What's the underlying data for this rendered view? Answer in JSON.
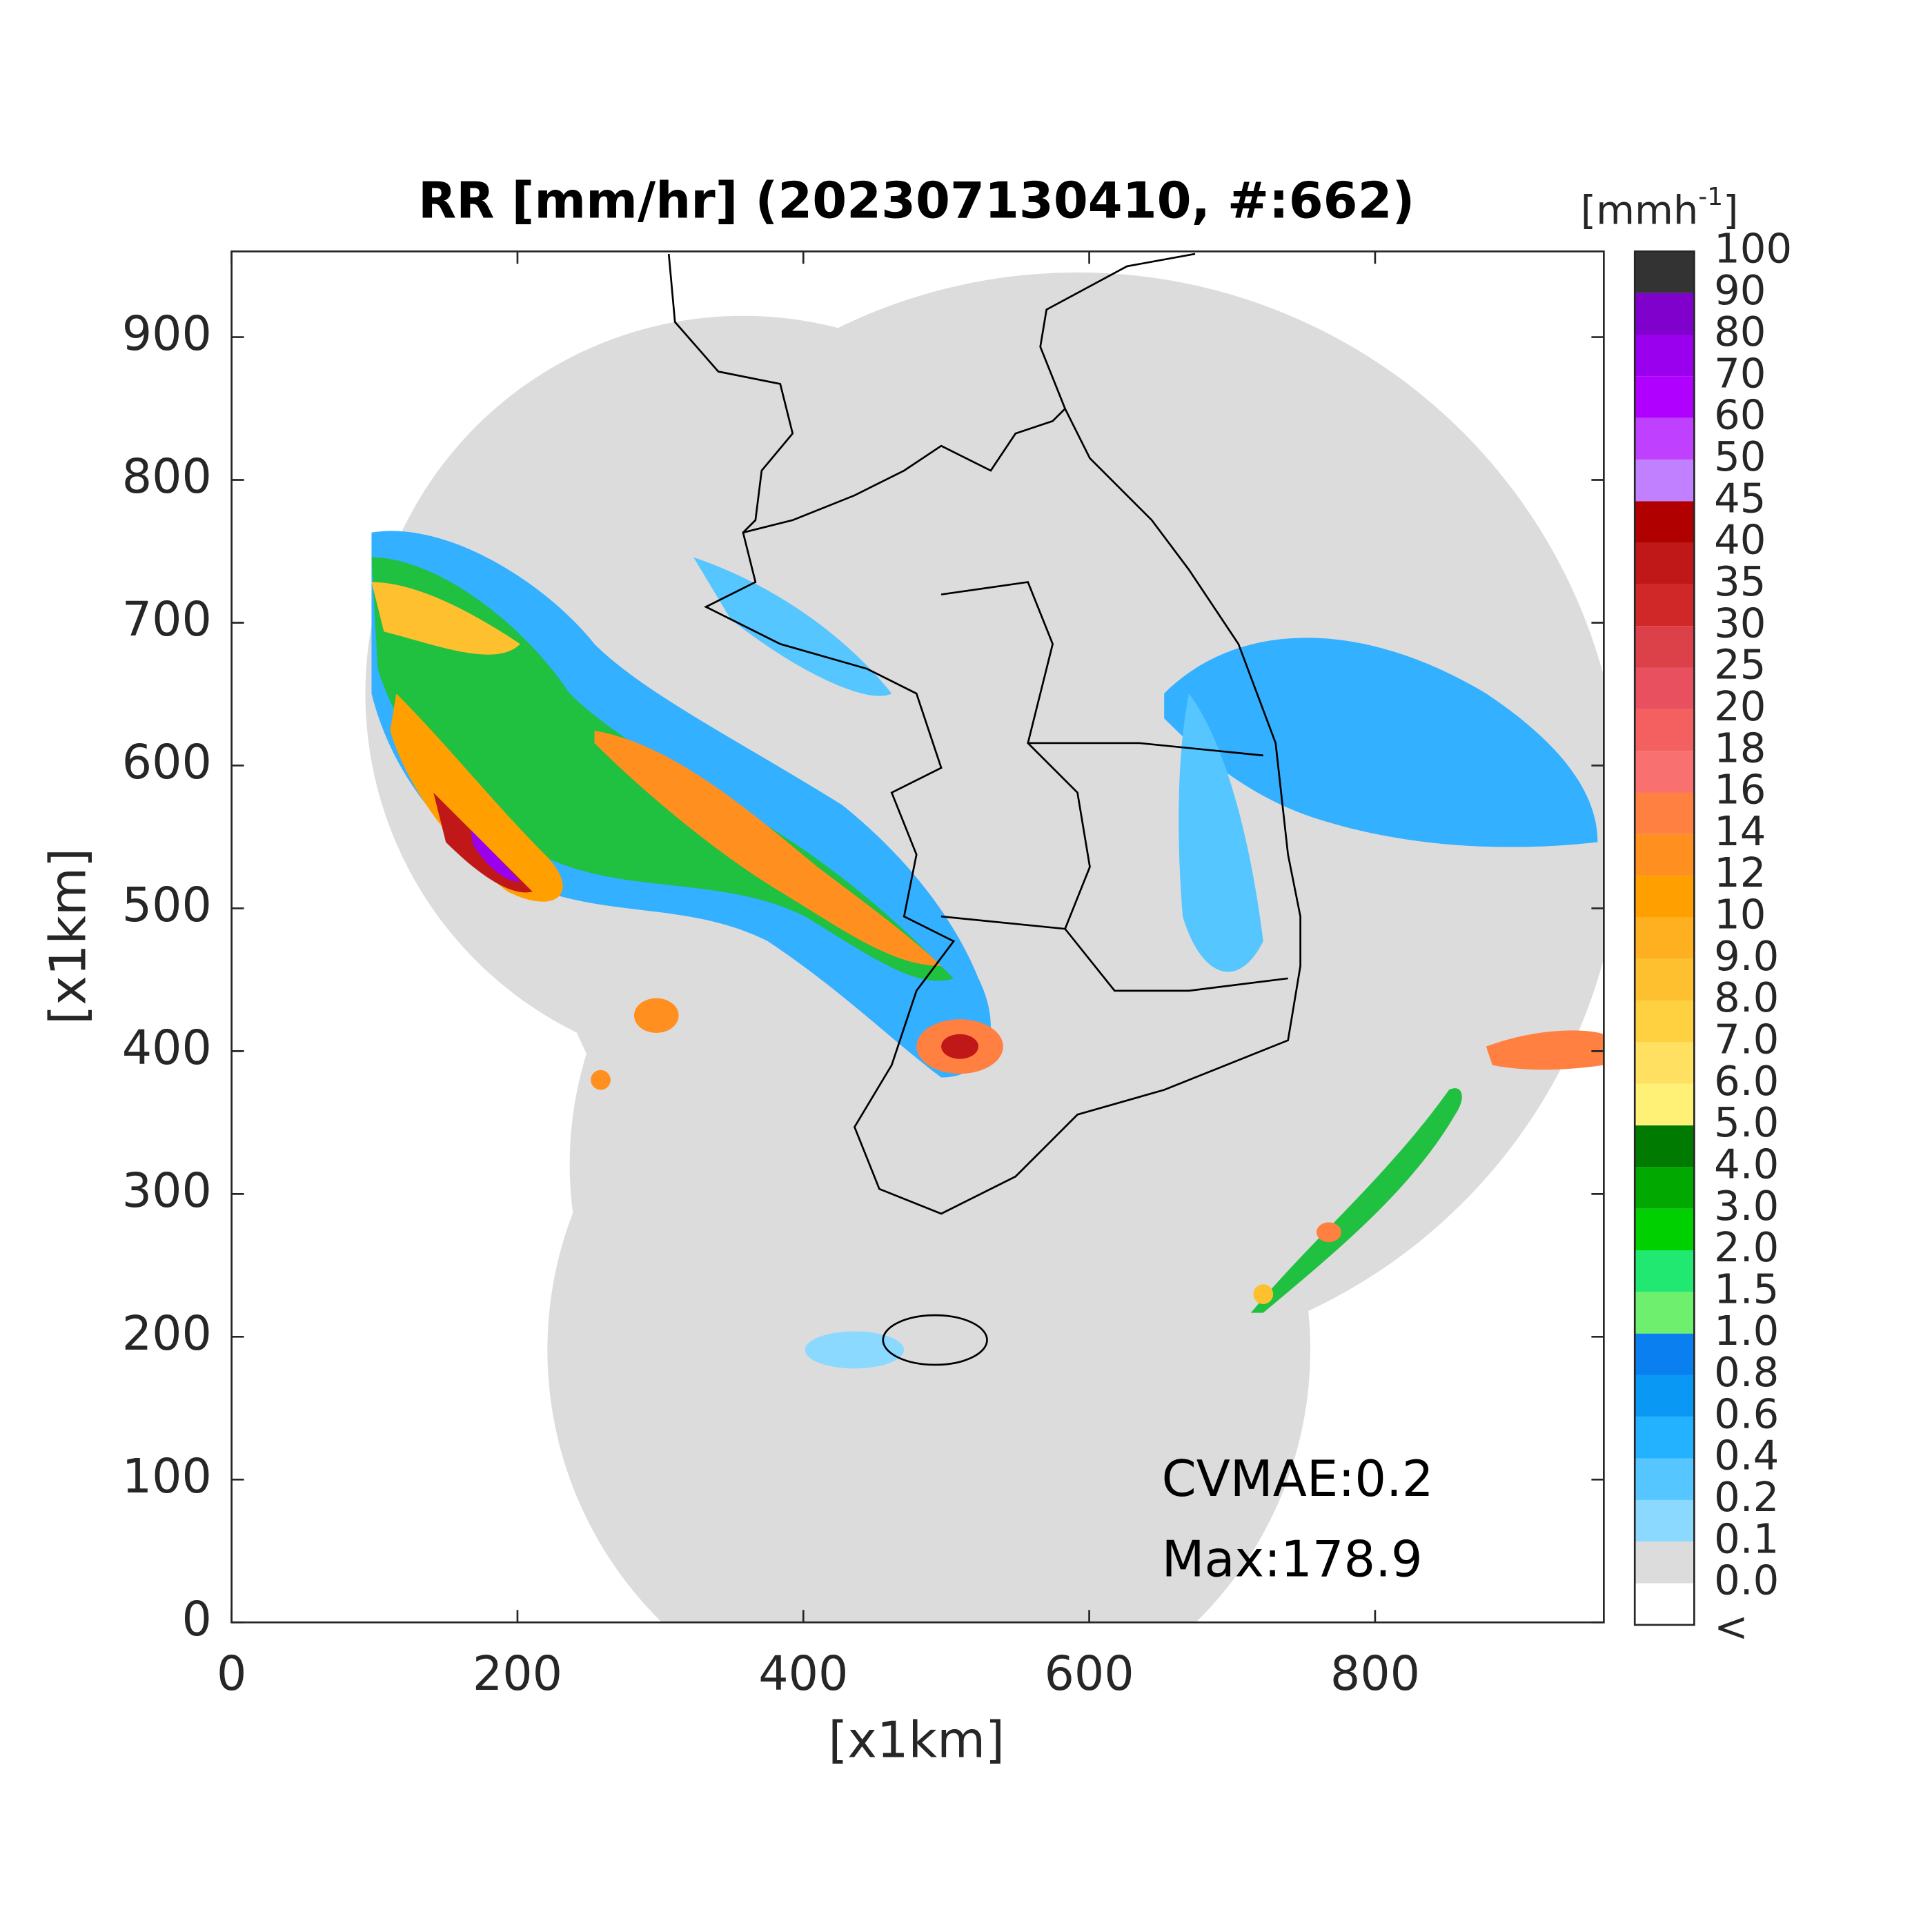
{
  "map": {
    "title": "RR [mm/hr] (202307130410, #:662)",
    "x_label": "[x1km]",
    "y_label": "[x1km]",
    "xlim": [
      0,
      960
    ],
    "ylim": [
      0,
      960
    ],
    "xticks": [
      0,
      200,
      400,
      600,
      800
    ],
    "yticks": [
      0,
      100,
      200,
      300,
      400,
      500,
      600,
      700,
      800,
      900
    ],
    "annotations": [
      "CVMAE:0.2",
      "Max:178.9"
    ],
    "colorbar": {
      "unit": "[mmh",
      "unit_exponent": "-1",
      "unit_close": "]",
      "labels": [
        "<",
        "0.0",
        "0.1",
        "0.2",
        "0.4",
        "0.6",
        "0.8",
        "1.0",
        "1.5",
        "2.0",
        "3.0",
        "4.0",
        "5.0",
        "6.0",
        "7.0",
        "8.0",
        "9.0",
        "10",
        "12",
        "14",
        "16",
        "18",
        "20",
        "25",
        "30",
        "35",
        "40",
        "45",
        "50",
        "60",
        "70",
        "80",
        "90",
        "100"
      ],
      "colors": [
        "#ffffff",
        "#dcdcdc",
        "#8cd9ff",
        "#55c6ff",
        "#22b2ff",
        "#0a98f5",
        "#0a7ff0",
        "#6ef06e",
        "#20e870",
        "#00d000",
        "#00a800",
        "#007a00",
        "#fff176",
        "#ffe060",
        "#ffd040",
        "#ffc030",
        "#ffb020",
        "#ffa000",
        "#ff9020",
        "#ff8040",
        "#f87070",
        "#f46060",
        "#e85060",
        "#dc4048",
        "#d02828",
        "#c01818",
        "#b00000",
        "#c080ff",
        "#c040ff",
        "#b000ff",
        "#9a00ee",
        "#8000cc",
        "#333333"
      ]
    }
  }
}
